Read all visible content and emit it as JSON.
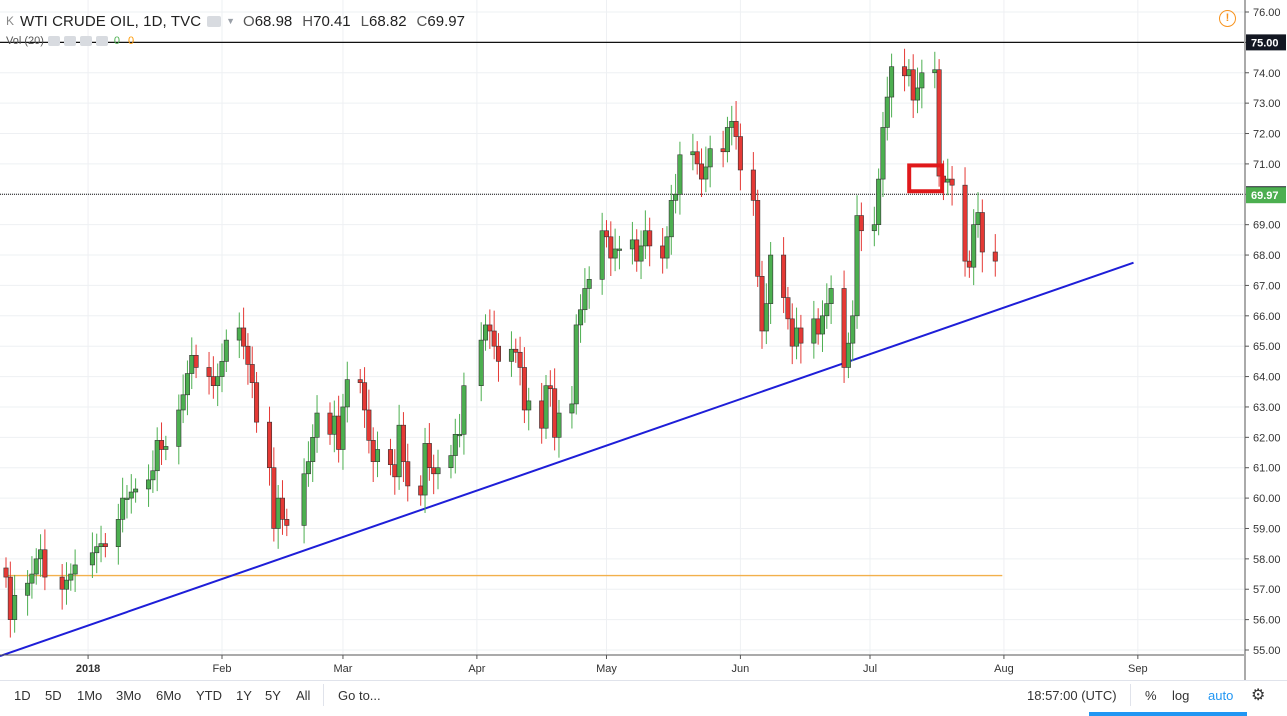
{
  "header": {
    "symbol": "WTI CRUDE OIL, 1D, TVC",
    "open_label": "O",
    "open": "68.98",
    "high_label": "H",
    "high": "70.41",
    "low_label": "L",
    "low": "68.82",
    "close_label": "C",
    "close": "69.97"
  },
  "volume_indicator": {
    "label": "Vol (20)",
    "value_up": "0",
    "value_down": "0"
  },
  "toolbar": {
    "ranges": [
      "1D",
      "5D",
      "1Mo",
      "3Mo",
      "6Mo",
      "YTD",
      "1Y",
      "5Y",
      "All"
    ],
    "goto_label": "Go to...",
    "time": "18:57:00 (UTC)",
    "percent_label": "%",
    "log_label": "log",
    "auto_label": "auto"
  },
  "colors": {
    "up": "#4caf50",
    "down": "#e53935",
    "trendline": "#1e1ed8",
    "highlight": "#e0191b",
    "orange_line": "#f2b04c"
  },
  "chart_data": {
    "type": "candlestick",
    "title": "WTI CRUDE OIL, 1D, TVC",
    "ylim": [
      54.7,
      76.2
    ],
    "y_ticks": [
      "76.00",
      "75.00",
      "74.00",
      "73.00",
      "72.00",
      "71.00",
      "70.00",
      "69.00",
      "68.00",
      "67.00",
      "66.00",
      "65.00",
      "64.00",
      "63.00",
      "62.00",
      "61.00",
      "60.00",
      "59.00",
      "58.00",
      "57.00",
      "56.00",
      "55.00"
    ],
    "x_start": "2017-12-13",
    "x_labels": [
      {
        "label": "2018",
        "date": "2018-01-01"
      },
      {
        "label": "Feb",
        "date": "2018-02-01"
      },
      {
        "label": "Mar",
        "date": "2018-03-01"
      },
      {
        "label": "Apr",
        "date": "2018-04-01"
      },
      {
        "label": "May",
        "date": "2018-05-01"
      },
      {
        "label": "Jun",
        "date": "2018-06-01"
      },
      {
        "label": "Jul",
        "date": "2018-07-01"
      },
      {
        "label": "Aug",
        "date": "2018-08-01"
      },
      {
        "label": "Sep",
        "date": "2018-09-01"
      }
    ],
    "price_labels": [
      {
        "value": "75.00",
        "price": 75.0,
        "style": "dark"
      },
      {
        "value": "70.00",
        "price": 70.0,
        "style": "dark"
      },
      {
        "value": "69.97",
        "price": 69.97,
        "style": "green"
      }
    ],
    "horizontal_lines": [
      {
        "price": 75.0,
        "style": "solid"
      },
      {
        "price": 70.0,
        "style": "dotted"
      },
      {
        "price": 57.45,
        "style": "orange",
        "from": "2017-12-13",
        "to": "2018-07-27"
      }
    ],
    "trendline": {
      "from": {
        "date": "2017-12-13",
        "price": 54.8
      },
      "to": {
        "date": "2018-08-31",
        "price": 67.75
      }
    },
    "highlight_box": {
      "from": "2018-07-11",
      "to": "2018-07-17",
      "price_low": 70.1,
      "price_high": 70.95
    },
    "closes": [
      [
        "2017-12-13",
        57.4
      ],
      [
        "2017-12-14",
        56.0
      ],
      [
        "2017-12-15",
        56.8
      ],
      [
        "2017-12-18",
        57.2
      ],
      [
        "2017-12-19",
        57.5
      ],
      [
        "2017-12-20",
        58.0
      ],
      [
        "2017-12-21",
        58.3
      ],
      [
        "2017-12-22",
        57.4
      ],
      [
        "2017-12-26",
        57.0
      ],
      [
        "2017-12-27",
        57.3
      ],
      [
        "2017-12-28",
        57.5
      ],
      [
        "2017-12-29",
        57.8
      ],
      [
        "2018-01-02",
        58.2
      ],
      [
        "2018-01-03",
        58.4
      ],
      [
        "2018-01-04",
        58.5
      ],
      [
        "2018-01-05",
        58.4
      ],
      [
        "2018-01-08",
        59.3
      ],
      [
        "2018-01-09",
        60.0
      ],
      [
        "2018-01-10",
        60.0
      ],
      [
        "2018-01-11",
        60.2
      ],
      [
        "2018-01-12",
        60.3
      ],
      [
        "2018-01-15",
        60.6
      ],
      [
        "2018-01-16",
        60.9
      ],
      [
        "2018-01-17",
        61.9
      ],
      [
        "2018-01-18",
        61.6
      ],
      [
        "2018-01-19",
        61.7
      ],
      [
        "2018-01-22",
        62.9
      ],
      [
        "2018-01-23",
        63.4
      ],
      [
        "2018-01-24",
        64.1
      ],
      [
        "2018-01-25",
        64.7
      ],
      [
        "2018-01-26",
        64.3
      ],
      [
        "2018-01-29",
        64.0
      ],
      [
        "2018-01-30",
        63.7
      ],
      [
        "2018-01-31",
        64.0
      ],
      [
        "2018-02-01",
        64.5
      ],
      [
        "2018-02-02",
        65.2
      ],
      [
        "2018-02-05",
        65.6
      ],
      [
        "2018-02-06",
        65.0
      ],
      [
        "2018-02-07",
        64.4
      ],
      [
        "2018-02-08",
        63.8
      ],
      [
        "2018-02-09",
        62.5
      ],
      [
        "2018-02-12",
        61.0
      ],
      [
        "2018-02-13",
        59.0
      ],
      [
        "2018-02-14",
        60.0
      ],
      [
        "2018-02-15",
        59.3
      ],
      [
        "2018-02-16",
        59.1
      ],
      [
        "2018-02-20",
        60.8
      ],
      [
        "2018-02-21",
        61.2
      ],
      [
        "2018-02-22",
        62.0
      ],
      [
        "2018-02-23",
        62.8
      ],
      [
        "2018-02-26",
        62.1
      ],
      [
        "2018-02-27",
        62.7
      ],
      [
        "2018-02-28",
        61.6
      ],
      [
        "2018-03-01",
        63.0
      ],
      [
        "2018-03-02",
        63.9
      ],
      [
        "2018-03-05",
        63.8
      ],
      [
        "2018-03-06",
        62.9
      ],
      [
        "2018-03-07",
        61.9
      ],
      [
        "2018-03-08",
        61.2
      ],
      [
        "2018-03-09",
        61.6
      ],
      [
        "2018-03-12",
        61.1
      ],
      [
        "2018-03-13",
        60.7
      ],
      [
        "2018-03-14",
        62.4
      ],
      [
        "2018-03-15",
        61.2
      ],
      [
        "2018-03-16",
        60.4
      ],
      [
        "2018-03-19",
        60.1
      ],
      [
        "2018-03-20",
        61.8
      ],
      [
        "2018-03-21",
        61.0
      ],
      [
        "2018-03-22",
        60.8
      ],
      [
        "2018-03-23",
        61.0
      ],
      [
        "2018-03-26",
        61.4
      ],
      [
        "2018-03-27",
        62.1
      ],
      [
        "2018-03-28",
        62.1
      ],
      [
        "2018-03-29",
        63.7
      ],
      [
        "2018-04-02",
        65.2
      ],
      [
        "2018-04-03",
        65.7
      ],
      [
        "2018-04-04",
        65.5
      ],
      [
        "2018-04-05",
        65.0
      ],
      [
        "2018-04-06",
        64.5
      ],
      [
        "2018-04-09",
        64.9
      ],
      [
        "2018-04-10",
        64.8
      ],
      [
        "2018-04-11",
        64.3
      ],
      [
        "2018-04-12",
        62.9
      ],
      [
        "2018-04-13",
        63.2
      ],
      [
        "2018-04-16",
        62.3
      ],
      [
        "2018-04-17",
        63.7
      ],
      [
        "2018-04-18",
        63.6
      ],
      [
        "2018-04-19",
        62.0
      ],
      [
        "2018-04-20",
        62.8
      ],
      [
        "2018-04-23",
        63.1
      ],
      [
        "2018-04-24",
        65.7
      ],
      [
        "2018-04-25",
        66.2
      ],
      [
        "2018-04-26",
        66.9
      ],
      [
        "2018-04-27",
        67.2
      ],
      [
        "2018-04-30",
        68.8
      ],
      [
        "2018-05-01",
        68.6
      ],
      [
        "2018-05-02",
        67.9
      ],
      [
        "2018-05-03",
        68.2
      ],
      [
        "2018-05-04",
        68.2
      ],
      [
        "2018-05-07",
        68.5
      ],
      [
        "2018-05-08",
        67.8
      ],
      [
        "2018-05-09",
        68.3
      ],
      [
        "2018-05-10",
        68.8
      ],
      [
        "2018-05-11",
        68.3
      ],
      [
        "2018-05-14",
        67.9
      ],
      [
        "2018-05-15",
        68.6
      ],
      [
        "2018-05-16",
        69.8
      ],
      [
        "2018-05-17",
        70.0
      ],
      [
        "2018-05-18",
        71.3
      ],
      [
        "2018-05-21",
        71.4
      ],
      [
        "2018-05-22",
        71.0
      ],
      [
        "2018-05-23",
        70.5
      ],
      [
        "2018-05-24",
        70.9
      ],
      [
        "2018-05-25",
        71.5
      ],
      [
        "2018-05-28",
        71.4
      ],
      [
        "2018-05-29",
        72.2
      ],
      [
        "2018-05-30",
        72.4
      ],
      [
        "2018-05-31",
        71.9
      ],
      [
        "2018-06-01",
        70.8
      ],
      [
        "2018-06-04",
        69.8
      ],
      [
        "2018-06-05",
        67.3
      ],
      [
        "2018-06-06",
        65.5
      ],
      [
        "2018-06-07",
        66.4
      ],
      [
        "2018-06-08",
        68.0
      ],
      [
        "2018-06-11",
        66.6
      ],
      [
        "2018-06-12",
        65.9
      ],
      [
        "2018-06-13",
        65.0
      ],
      [
        "2018-06-14",
        65.6
      ],
      [
        "2018-06-15",
        65.1
      ],
      [
        "2018-06-18",
        65.9
      ],
      [
        "2018-06-19",
        65.4
      ],
      [
        "2018-06-20",
        66.0
      ],
      [
        "2018-06-21",
        66.4
      ],
      [
        "2018-06-22",
        66.9
      ],
      [
        "2018-06-25",
        64.3
      ],
      [
        "2018-06-26",
        65.1
      ],
      [
        "2018-06-27",
        66.0
      ],
      [
        "2018-06-28",
        69.3
      ],
      [
        "2018-06-29",
        68.8
      ],
      [
        "2018-07-02",
        69.0
      ],
      [
        "2018-07-03",
        70.5
      ],
      [
        "2018-07-04",
        72.2
      ],
      [
        "2018-07-05",
        73.2
      ],
      [
        "2018-07-06",
        74.2
      ],
      [
        "2018-07-09",
        73.9
      ],
      [
        "2018-07-10",
        74.1
      ],
      [
        "2018-07-11",
        73.1
      ],
      [
        "2018-07-12",
        73.5
      ],
      [
        "2018-07-13",
        74.0
      ],
      [
        "2018-07-16",
        74.1
      ],
      [
        "2018-07-17",
        70.6
      ],
      [
        "2018-07-18",
        70.4
      ],
      [
        "2018-07-19",
        70.5
      ],
      [
        "2018-07-20",
        70.3
      ],
      [
        "2018-07-23",
        67.8
      ],
      [
        "2018-07-24",
        67.6
      ],
      [
        "2018-07-25",
        69.0
      ],
      [
        "2018-07-26",
        69.4
      ],
      [
        "2018-07-27",
        68.1
      ],
      [
        "2018-07-30",
        67.8
      ]
    ]
  }
}
